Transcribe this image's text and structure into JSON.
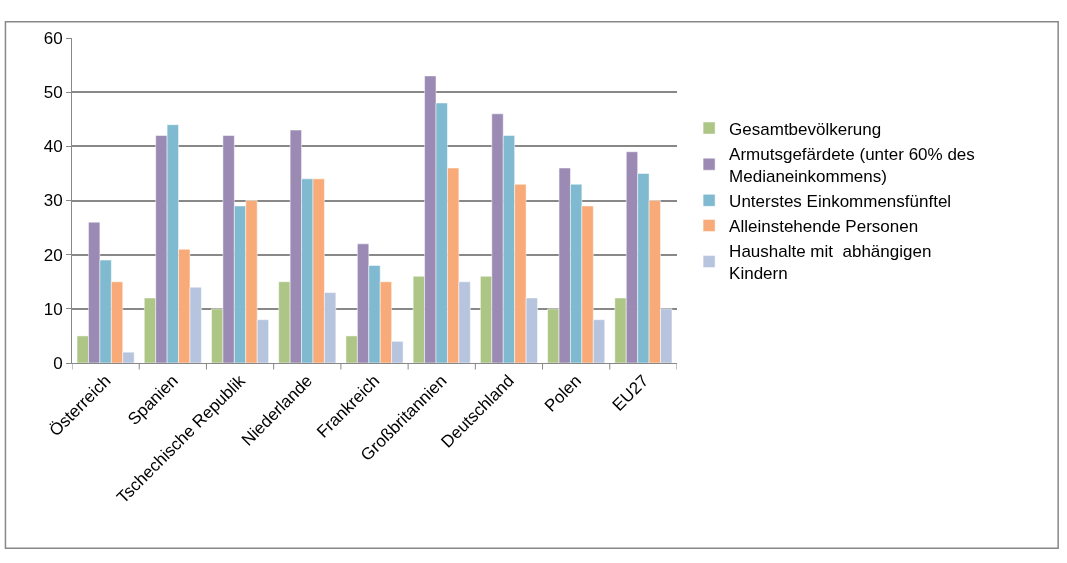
{
  "chart_data": {
    "type": "bar",
    "categories": [
      "Österreich",
      "Spanien",
      "Tschechische Republik",
      "Niederlande",
      "Frankreich",
      "Großbritannien",
      "Deutschland",
      "Polen",
      "EU27"
    ],
    "series": [
      {
        "name": "Gesamtbevölkerung",
        "color": "#adc585",
        "values": [
          5,
          12,
          10,
          15,
          5,
          16,
          16,
          10,
          12
        ]
      },
      {
        "name": "Armutsgefärdete (unter 60% des Medianeinkommens)",
        "color": "#9b8ab3",
        "values": [
          26,
          42,
          42,
          43,
          22,
          53,
          46,
          36,
          39
        ]
      },
      {
        "name": "Unterstes Einkommensfünftel",
        "color": "#7fbad0",
        "values": [
          19,
          44,
          29,
          34,
          18,
          48,
          42,
          33,
          35
        ]
      },
      {
        "name": "Alleinstehende Personen",
        "color": "#f8aa78",
        "values": [
          15,
          21,
          30,
          34,
          15,
          36,
          33,
          29,
          30
        ]
      },
      {
        "name": "Haushalte mit  abhängigen Kindern",
        "color": "#b7c4de",
        "values": [
          2,
          14,
          8,
          13,
          4,
          15,
          12,
          8,
          10
        ]
      }
    ],
    "ylim": [
      0,
      60
    ],
    "yticks": [
      0,
      10,
      20,
      30,
      40,
      50,
      60
    ],
    "grid": "y",
    "legend": "right"
  }
}
